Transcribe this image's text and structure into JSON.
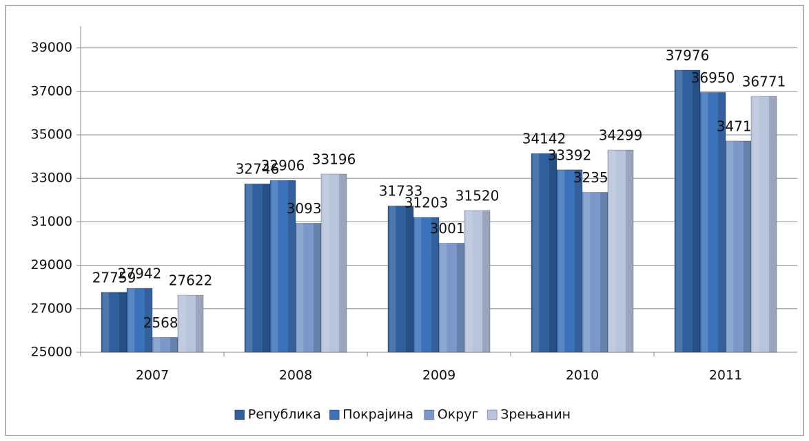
{
  "chart_data": {
    "type": "bar",
    "categories": [
      "2007",
      "2008",
      "2009",
      "2010",
      "2011"
    ],
    "series": [
      {
        "name": "Република",
        "color": "#2f5f9c",
        "values": [
          27759,
          32746,
          31733,
          34142,
          37976
        ]
      },
      {
        "name": "Покрајина",
        "color": "#3b72ba",
        "values": [
          27942,
          32906,
          31203,
          33392,
          36950
        ]
      },
      {
        "name": "Округ",
        "color": "#7b98c9",
        "values": [
          25685,
          30935,
          30017,
          32358,
          34717
        ]
      },
      {
        "name": "Зрењанин",
        "color": "#b7c4dc",
        "values": [
          27622,
          33196,
          31520,
          34299,
          36771
        ]
      }
    ],
    "ylim": [
      25000,
      40000
    ],
    "yticks": [
      25000,
      27000,
      29000,
      31000,
      33000,
      35000,
      37000,
      39000
    ],
    "grid": true,
    "legend": "bottom"
  }
}
